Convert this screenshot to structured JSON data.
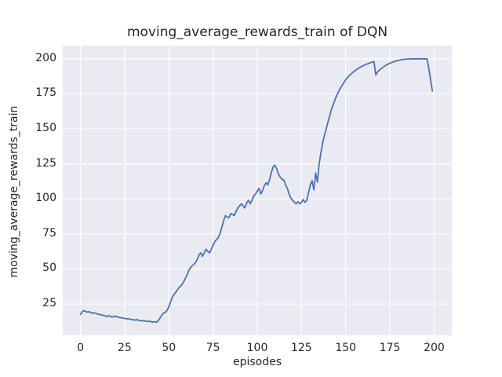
{
  "chart_data": {
    "type": "line",
    "title": "moving_average_rewards_train of DQN",
    "xlabel": "episodes",
    "ylabel": "moving_average_rewards_train",
    "xlim": [
      -10,
      210
    ],
    "ylim": [
      2.6,
      209.4
    ],
    "xticks": [
      0,
      25,
      50,
      75,
      100,
      125,
      150,
      175,
      200
    ],
    "yticks": [
      25,
      50,
      75,
      100,
      125,
      150,
      175,
      200
    ],
    "grid": true,
    "legend_position": "none",
    "style": {
      "line_color": "#4c72b0",
      "plot_bg": "#eaeaf2",
      "grid_color": "#ffffff",
      "text_color": "#262626",
      "figure_bg": "#ffffff",
      "line_width": 1.8
    },
    "series": [
      {
        "name": "moving_average_rewards_train",
        "x": [
          0,
          1,
          2,
          3,
          4,
          5,
          6,
          7,
          8,
          9,
          10,
          11,
          12,
          13,
          14,
          15,
          16,
          17,
          18,
          19,
          20,
          21,
          22,
          23,
          24,
          25,
          26,
          27,
          28,
          29,
          30,
          31,
          32,
          33,
          34,
          35,
          36,
          37,
          38,
          39,
          40,
          41,
          42,
          43,
          44,
          45,
          46,
          47,
          48,
          49,
          50,
          51,
          52,
          53,
          54,
          55,
          56,
          57,
          58,
          59,
          60,
          61,
          62,
          63,
          64,
          65,
          66,
          67,
          68,
          69,
          70,
          71,
          72,
          73,
          74,
          75,
          76,
          77,
          78,
          79,
          80,
          81,
          82,
          83,
          84,
          85,
          86,
          87,
          88,
          89,
          90,
          91,
          92,
          93,
          94,
          95,
          96,
          97,
          98,
          99,
          100,
          101,
          102,
          103,
          104,
          105,
          106,
          107,
          108,
          109,
          110,
          111,
          112,
          113,
          114,
          115,
          116,
          117,
          118,
          119,
          120,
          121,
          122,
          123,
          124,
          125,
          126,
          127,
          128,
          129,
          130,
          131,
          132,
          133,
          134,
          135,
          136,
          137,
          138,
          139,
          140,
          141,
          142,
          143,
          144,
          145,
          146,
          147,
          148,
          149,
          150,
          151,
          152,
          153,
          154,
          155,
          156,
          157,
          158,
          159,
          160,
          161,
          162,
          163,
          164,
          165,
          166,
          167,
          168,
          169,
          170,
          171,
          172,
          173,
          174,
          175,
          176,
          177,
          178,
          179,
          180,
          181,
          182,
          183,
          184,
          185,
          186,
          187,
          188,
          189,
          190,
          191,
          192,
          193,
          194,
          195,
          196,
          197,
          198,
          199
        ],
        "y": [
          17.5,
          19.5,
          20.3,
          19.6,
          19.2,
          19.5,
          18.8,
          18.4,
          18.7,
          18.1,
          17.8,
          17.4,
          17.2,
          16.9,
          16.5,
          16.1,
          16.7,
          16.0,
          15.7,
          16.1,
          16.3,
          15.7,
          15.4,
          15.2,
          14.9,
          14.7,
          14.4,
          14.6,
          14.1,
          13.9,
          13.7,
          13.5,
          13.8,
          13.3,
          13.1,
          12.9,
          13.1,
          12.7,
          12.5,
          12.8,
          12.3,
          12.1,
          12.4,
          12.0,
          13.0,
          15.0,
          17.0,
          18.5,
          19.0,
          20.5,
          23.0,
          26.5,
          30.0,
          32.0,
          33.5,
          35.5,
          37.0,
          38.0,
          40.0,
          42.5,
          45.0,
          48.0,
          50.5,
          52.0,
          53.0,
          54.5,
          56.5,
          60.0,
          61.5,
          59.0,
          61.5,
          64.0,
          62.5,
          61.5,
          64.0,
          67.0,
          69.5,
          71.0,
          72.5,
          75.5,
          80.0,
          84.5,
          88.0,
          87.0,
          86.5,
          89.5,
          89.0,
          88.0,
          91.0,
          93.5,
          95.0,
          96.5,
          95.0,
          93.5,
          97.0,
          99.0,
          96.5,
          99.0,
          102.0,
          103.5,
          105.5,
          107.5,
          103.5,
          106.0,
          109.5,
          111.5,
          110.0,
          114.0,
          119.0,
          123.0,
          124.0,
          121.5,
          117.5,
          115.5,
          114.0,
          113.5,
          110.0,
          107.5,
          103.5,
          100.5,
          99.0,
          97.5,
          96.5,
          98.0,
          96.5,
          97.5,
          99.5,
          97.5,
          99.0,
          104.5,
          110.0,
          113.0,
          106.5,
          118.5,
          112.0,
          125.0,
          133.0,
          140.0,
          145.5,
          150.0,
          155.0,
          159.5,
          164.0,
          167.5,
          171.0,
          174.0,
          176.5,
          179.0,
          181.0,
          183.0,
          185.0,
          186.5,
          188.0,
          189.0,
          190.2,
          191.2,
          192.2,
          193.0,
          193.8,
          194.5,
          195.1,
          195.7,
          196.2,
          196.7,
          197.2,
          197.6,
          197.9,
          188.5,
          190.5,
          191.8,
          192.9,
          193.9,
          194.7,
          195.5,
          196.2,
          196.8,
          197.3,
          197.8,
          198.2,
          198.6,
          198.9,
          199.2,
          199.4,
          199.6,
          199.7,
          199.8,
          199.8,
          199.9,
          199.9,
          199.9,
          199.9,
          199.9,
          199.9,
          199.9,
          199.9,
          199.9,
          199.9,
          193.0,
          185.0,
          177.0
        ]
      }
    ]
  }
}
